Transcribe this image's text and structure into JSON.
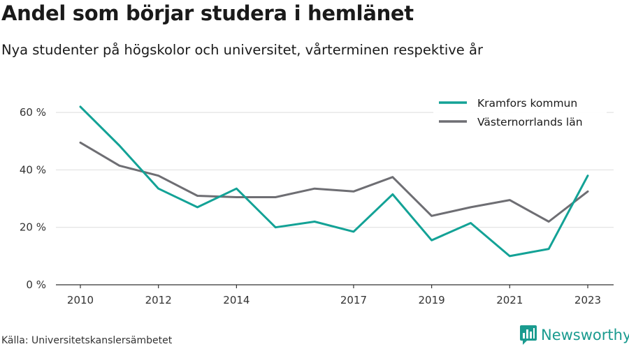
{
  "title": "Andel som börjar studera i hemlänet",
  "subtitle": "Nya studenter på högskolor och universitet, vårterminen respektive år",
  "source": "Källa: Universitetskanslersämbetet",
  "brand": {
    "name": "Newsworthy",
    "icon": "bar-chart-logo-icon",
    "color": "#1a9b8f"
  },
  "chart_data": {
    "type": "line",
    "x": [
      2010,
      2011,
      2012,
      2013,
      2014,
      2015,
      2016,
      2017,
      2018,
      2019,
      2020,
      2021,
      2022,
      2023
    ],
    "x_tick_labels": [
      "2010",
      "2012",
      "2014",
      "2017",
      "2019",
      "2021",
      "2023"
    ],
    "y_tick_labels": [
      "0 %",
      "20 %",
      "40 %",
      "60 %"
    ],
    "ylim": [
      0,
      70
    ],
    "grid": true,
    "legend_position": "top-right",
    "series": [
      {
        "name": "Kramfors kommun",
        "color": "#13a296",
        "values": [
          62,
          48.5,
          33.5,
          27,
          33.5,
          20,
          22,
          18.5,
          31.5,
          15.5,
          21.5,
          10,
          12.5,
          38
        ]
      },
      {
        "name": "Västernorrlands län",
        "color": "#6e6e73",
        "values": [
          49.5,
          41.5,
          38,
          31,
          30.5,
          30.5,
          33.5,
          32.5,
          37.5,
          24,
          27,
          29.5,
          22,
          32.5
        ]
      }
    ]
  }
}
